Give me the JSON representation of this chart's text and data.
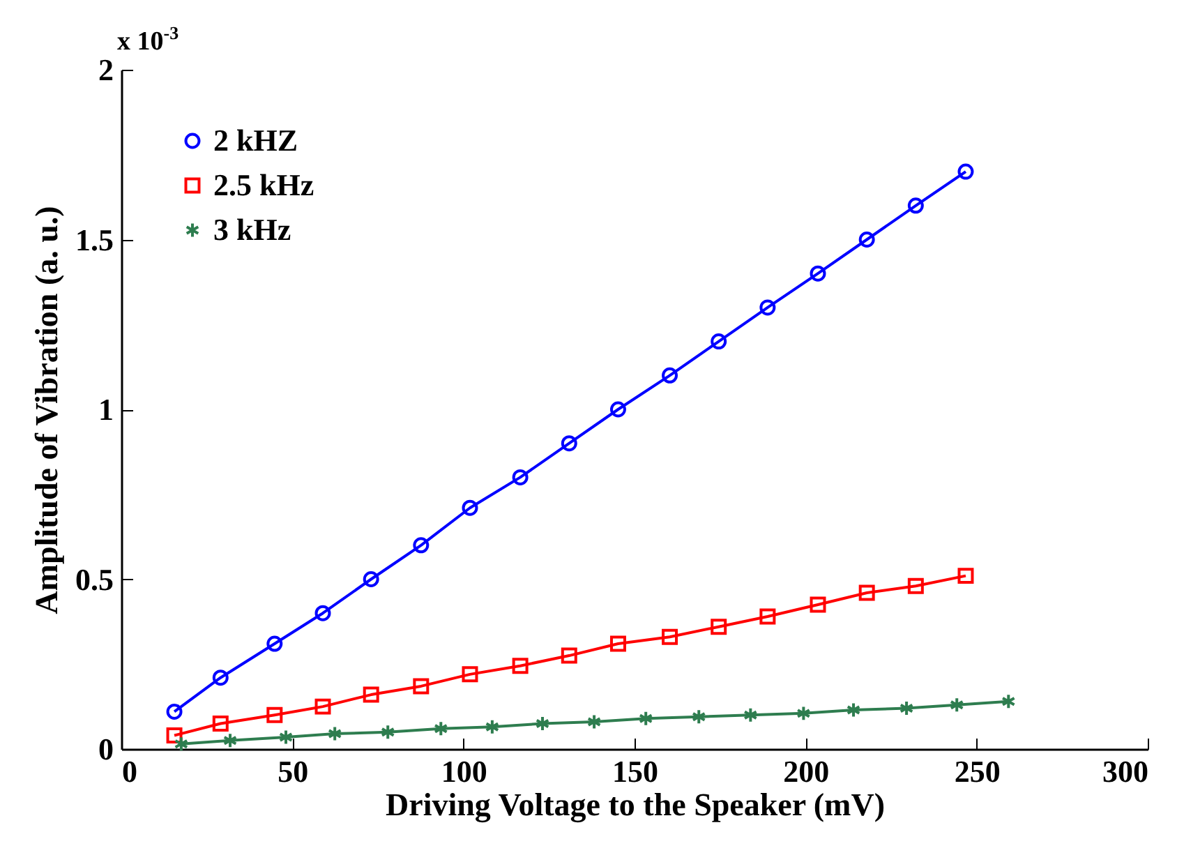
{
  "chart_data": {
    "type": "line",
    "xlabel": "Driving Voltage to the Speaker (mV)",
    "ylabel": "Amplitude of Vibration (a. u.)",
    "annotations": [
      "x 10$^{-3}$"
    ],
    "xlim": [
      0,
      300
    ],
    "xticks": [
      0,
      50,
      100,
      150,
      200,
      250,
      300
    ],
    "ylim": [
      0,
      2
    ],
    "yticks": [
      0,
      0.5,
      1,
      1.5,
      2
    ],
    "grid": false,
    "legend": "top left",
    "line_style": "solid",
    "series": [
      {
        "name": "2 kHZ",
        "color": "#0000ff",
        "marker": "circle",
        "x": [
          15.5,
          29,
          44.8,
          58.9,
          73,
          87.6,
          101.9,
          116.6,
          130.9,
          145.2,
          160.3,
          174.6,
          188.9,
          203.6,
          217.9,
          232.2,
          246.8
        ],
        "values": [
          0.11,
          0.21,
          0.31,
          0.4,
          0.5,
          0.6,
          0.71,
          0.8,
          0.9,
          1.0,
          1.1,
          1.2,
          1.3,
          1.4,
          1.5,
          1.6,
          1.7
        ]
      },
      {
        "name": "2.5 kHz",
        "color": "#ff0000",
        "marker": "square",
        "x": [
          15.5,
          29,
          44.8,
          58.9,
          73,
          87.6,
          101.9,
          116.6,
          130.9,
          145.2,
          160.3,
          174.6,
          188.9,
          203.6,
          217.9,
          232.2,
          246.8
        ],
        "values": [
          0.04,
          0.075,
          0.1,
          0.125,
          0.16,
          0.185,
          0.22,
          0.245,
          0.275,
          0.31,
          0.33,
          0.36,
          0.39,
          0.425,
          0.46,
          0.48,
          0.51
        ]
      },
      {
        "name": "3 kHz",
        "color": "#2e7d4f",
        "marker": "cross",
        "x": [
          17.5,
          31.8,
          48.1,
          62.4,
          77.9,
          93.4,
          108.4,
          123.1,
          138.2,
          153.3,
          168.8,
          183.9,
          199.4,
          214,
          229.5,
          244.2,
          259.3
        ],
        "values": [
          0.015,
          0.025,
          0.035,
          0.045,
          0.05,
          0.06,
          0.065,
          0.075,
          0.08,
          0.09,
          0.095,
          0.1,
          0.105,
          0.115,
          0.12,
          0.13,
          0.14
        ]
      }
    ]
  }
}
